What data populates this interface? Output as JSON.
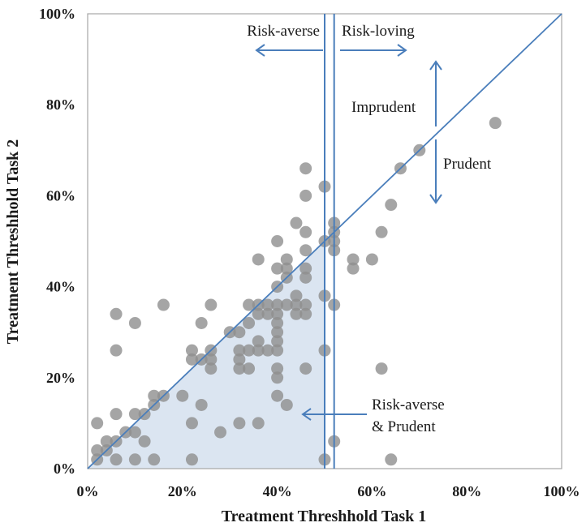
{
  "chart_data": {
    "type": "scatter",
    "xlabel": "Treatment  Threshhold Task 1",
    "ylabel": "Treatment Threshhold Task 2",
    "xlim": [
      0,
      100
    ],
    "ylim": [
      0,
      100
    ],
    "x_ticks": [
      "0%",
      "20%",
      "40%",
      "60%",
      "80%",
      "100%"
    ],
    "y_ticks": [
      "0%",
      "20%",
      "40%",
      "60%",
      "80%",
      "100%"
    ],
    "grid": false,
    "colors": {
      "point": "#8f8f8f",
      "line": "#4a7ebb",
      "shade": "#dbe5f1",
      "frame": "#a6a6a6"
    },
    "reference_lines": {
      "diagonal": {
        "from": [
          0,
          0
        ],
        "to": [
          100,
          100
        ]
      },
      "vertical_lines_x": [
        50,
        52
      ]
    },
    "annotations": {
      "risk_averse": "Risk-averse",
      "risk_loving": "Risk-loving",
      "imprudent": "Imprudent",
      "prudent": "Prudent",
      "risk_averse_prudent_1": "Risk-averse",
      "risk_averse_prudent_2": "& Prudent"
    },
    "points": [
      [
        2,
        2
      ],
      [
        2,
        4
      ],
      [
        2,
        10
      ],
      [
        4,
        4
      ],
      [
        4,
        6
      ],
      [
        6,
        2
      ],
      [
        6,
        6
      ],
      [
        6,
        12
      ],
      [
        6,
        26
      ],
      [
        6,
        34
      ],
      [
        8,
        8
      ],
      [
        10,
        2
      ],
      [
        10,
        8
      ],
      [
        10,
        12
      ],
      [
        10,
        32
      ],
      [
        12,
        6
      ],
      [
        12,
        12
      ],
      [
        14,
        2
      ],
      [
        14,
        14
      ],
      [
        14,
        16
      ],
      [
        16,
        16
      ],
      [
        16,
        36
      ],
      [
        20,
        16
      ],
      [
        22,
        2
      ],
      [
        22,
        10
      ],
      [
        22,
        24
      ],
      [
        22,
        26
      ],
      [
        24,
        14
      ],
      [
        24,
        24
      ],
      [
        24,
        32
      ],
      [
        26,
        22
      ],
      [
        26,
        24
      ],
      [
        26,
        26
      ],
      [
        26,
        36
      ],
      [
        28,
        8
      ],
      [
        30,
        30
      ],
      [
        32,
        10
      ],
      [
        32,
        22
      ],
      [
        32,
        24
      ],
      [
        32,
        26
      ],
      [
        32,
        30
      ],
      [
        34,
        22
      ],
      [
        34,
        26
      ],
      [
        34,
        32
      ],
      [
        34,
        36
      ],
      [
        36,
        10
      ],
      [
        36,
        26
      ],
      [
        36,
        28
      ],
      [
        36,
        34
      ],
      [
        36,
        36
      ],
      [
        36,
        46
      ],
      [
        38,
        26
      ],
      [
        38,
        34
      ],
      [
        38,
        36
      ],
      [
        40,
        16
      ],
      [
        40,
        20
      ],
      [
        40,
        22
      ],
      [
        40,
        26
      ],
      [
        40,
        28
      ],
      [
        40,
        30
      ],
      [
        40,
        32
      ],
      [
        40,
        34
      ],
      [
        40,
        36
      ],
      [
        40,
        40
      ],
      [
        40,
        44
      ],
      [
        40,
        50
      ],
      [
        42,
        14
      ],
      [
        42,
        36
      ],
      [
        42,
        42
      ],
      [
        42,
        44
      ],
      [
        42,
        46
      ],
      [
        44,
        34
      ],
      [
        44,
        36
      ],
      [
        44,
        38
      ],
      [
        44,
        54
      ],
      [
        46,
        22
      ],
      [
        46,
        34
      ],
      [
        46,
        36
      ],
      [
        46,
        42
      ],
      [
        46,
        44
      ],
      [
        46,
        48
      ],
      [
        46,
        52
      ],
      [
        46,
        60
      ],
      [
        46,
        66
      ],
      [
        50,
        2
      ],
      [
        50,
        26
      ],
      [
        50,
        38
      ],
      [
        50,
        50
      ],
      [
        50,
        62
      ],
      [
        52,
        6
      ],
      [
        52,
        36
      ],
      [
        52,
        48
      ],
      [
        52,
        50
      ],
      [
        52,
        52
      ],
      [
        52,
        54
      ],
      [
        56,
        44
      ],
      [
        56,
        46
      ],
      [
        60,
        46
      ],
      [
        62,
        22
      ],
      [
        62,
        52
      ],
      [
        64,
        2
      ],
      [
        64,
        58
      ],
      [
        66,
        66
      ],
      [
        70,
        70
      ],
      [
        86,
        76
      ]
    ]
  }
}
